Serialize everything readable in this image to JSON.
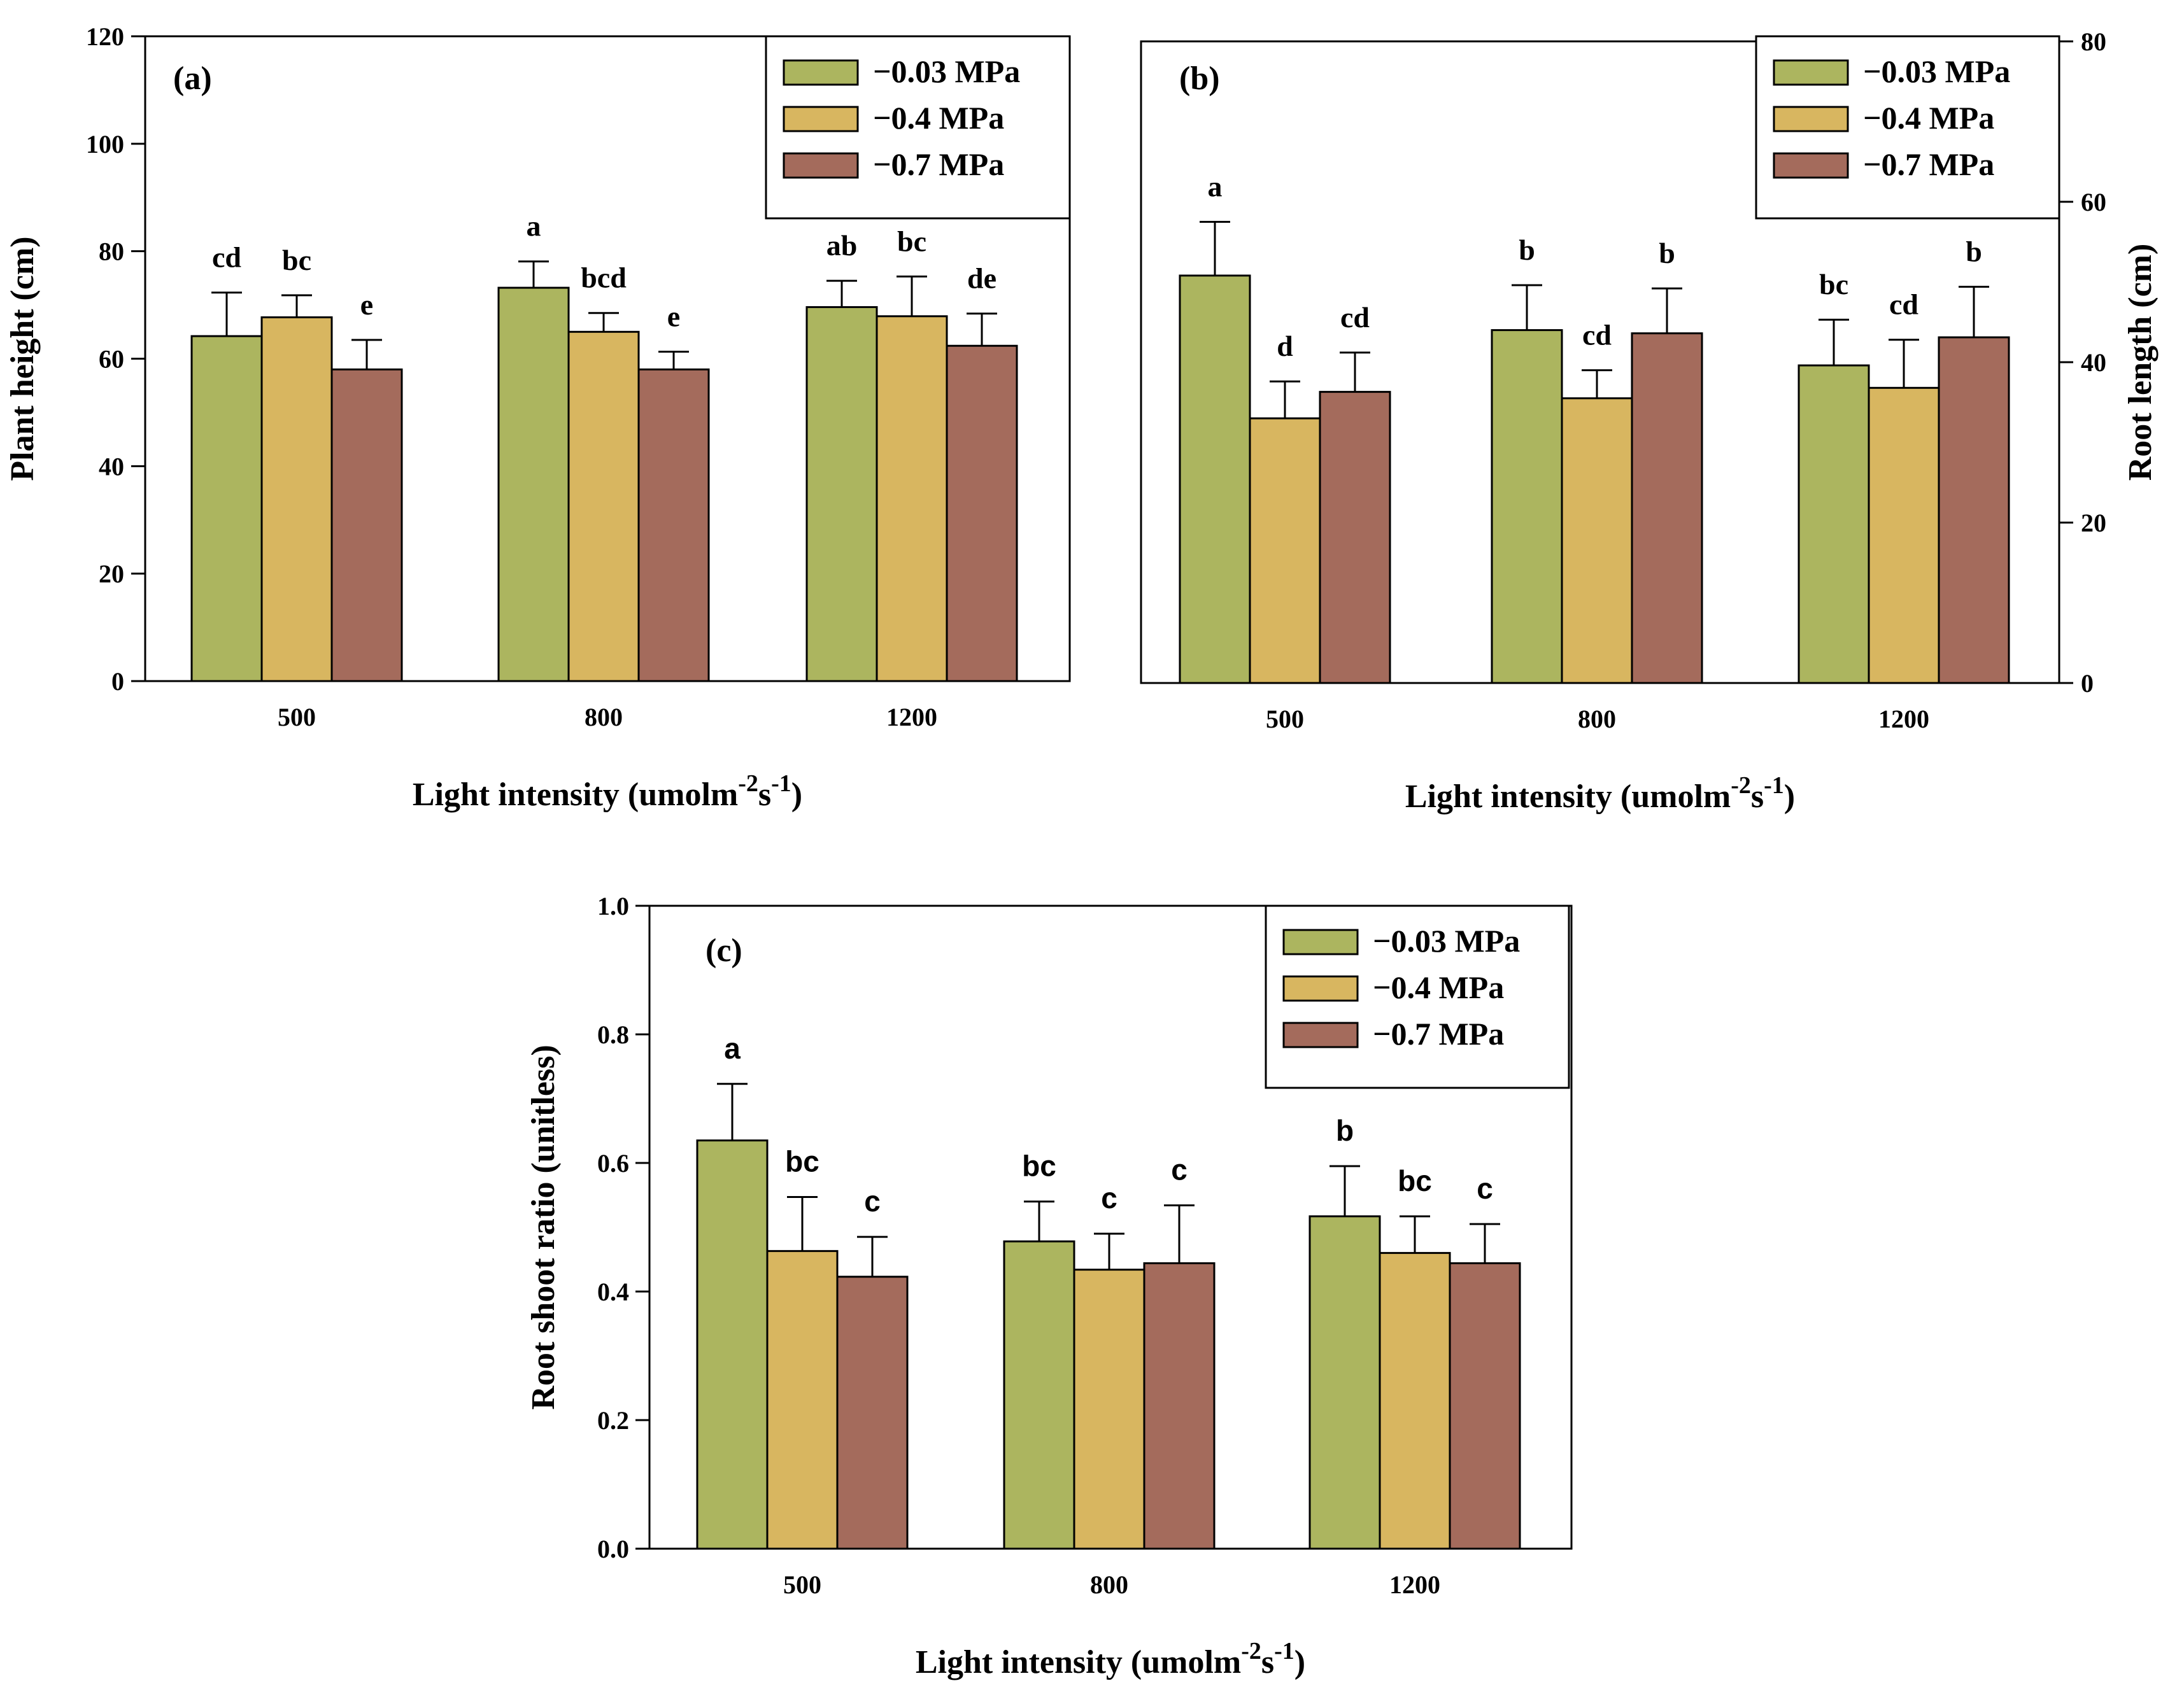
{
  "colors": {
    "series1": "#acb55f",
    "series2": "#d8b660",
    "series3": "#a46b5c"
  },
  "legend": [
    "−0.03 MPa",
    "−0.4 MPa",
    "−0.7 MPa"
  ],
  "chart_data": [
    {
      "type": "bar",
      "panel": "(a)",
      "categories": [
        "500",
        "800",
        "1200"
      ],
      "xlabel": "Light intensity (umolm",
      "xlabel_sup1": "-2",
      "xlabel_mid": "s",
      "xlabel_sup2": "-1",
      "xlabel_end": ")",
      "ylabel": "Plant height (cm)",
      "yaxis_side": "left",
      "ylim": [
        0,
        120
      ],
      "yticks": [
        "0",
        "20",
        "40",
        "60",
        "80",
        "100",
        "120"
      ],
      "ytick_values": [
        0,
        20,
        40,
        60,
        80,
        100,
        120
      ],
      "legend_position": "top-right",
      "series": [
        {
          "name": "−0.03 MPa",
          "values": [
            64.2,
            73.2,
            69.6
          ],
          "errors": [
            8.1,
            4.9,
            4.9
          ],
          "labels": [
            "cd",
            "a",
            "ab"
          ]
        },
        {
          "name": "−0.4 MPa",
          "values": [
            67.7,
            65.0,
            67.9
          ],
          "errors": [
            4.1,
            3.5,
            7.4
          ],
          "labels": [
            "bc",
            "bcd",
            "bc"
          ]
        },
        {
          "name": "−0.7 MPa",
          "values": [
            58.0,
            58.0,
            62.4
          ],
          "errors": [
            5.5,
            3.3,
            6.0
          ],
          "labels": [
            "e",
            "e",
            "de"
          ]
        }
      ]
    },
    {
      "type": "bar",
      "panel": "(b)",
      "categories": [
        "500",
        "800",
        "1200"
      ],
      "xlabel": "Light intensity (umolm",
      "xlabel_sup1": "-2",
      "xlabel_mid": "s",
      "xlabel_sup2": "-1",
      "xlabel_end": ")",
      "ylabel": "Root length (cm)",
      "yaxis_side": "right",
      "ylim": [
        0,
        80
      ],
      "yticks": [
        "0",
        "20",
        "40",
        "60",
        "80"
      ],
      "ytick_values": [
        0,
        20,
        40,
        60,
        80
      ],
      "legend_position": "top-right",
      "series": [
        {
          "name": "−0.03 MPa",
          "values": [
            50.8,
            44.0,
            39.6
          ],
          "errors": [
            6.7,
            5.6,
            5.7
          ],
          "labels": [
            "a",
            "b",
            "bc"
          ]
        },
        {
          "name": "−0.4 MPa",
          "values": [
            33.0,
            35.5,
            36.8
          ],
          "errors": [
            4.6,
            3.5,
            6.0
          ],
          "labels": [
            "d",
            "cd",
            "cd"
          ]
        },
        {
          "name": "−0.7 MPa",
          "values": [
            36.3,
            43.6,
            43.1
          ],
          "errors": [
            4.9,
            5.6,
            6.3
          ],
          "labels": [
            "cd",
            "b",
            "b"
          ]
        }
      ]
    },
    {
      "type": "bar",
      "panel": "(c)",
      "categories": [
        "500",
        "800",
        "1200"
      ],
      "xlabel": "Light intensity (umolm",
      "xlabel_sup1": "-2",
      "xlabel_mid": "s",
      "xlabel_sup2": "-1",
      "xlabel_end": ")",
      "ylabel": "Root shoot ratio (unitless)",
      "yaxis_side": "left",
      "ylim": [
        0,
        1
      ],
      "yticks": [
        "0.0",
        "0.2",
        "0.4",
        "0.6",
        "0.8",
        "1.0"
      ],
      "ytick_values": [
        0,
        0.2,
        0.4,
        0.6,
        0.8,
        1.0
      ],
      "legend_position": "top-right",
      "series": [
        {
          "name": "−0.03 MPa",
          "values": [
            0.635,
            0.478,
            0.517
          ],
          "errors": [
            0.088,
            0.062,
            0.078
          ],
          "labels": [
            "a",
            "bc",
            "b"
          ]
        },
        {
          "name": "−0.4 MPa",
          "values": [
            0.463,
            0.434,
            0.46
          ],
          "errors": [
            0.084,
            0.056,
            0.057
          ],
          "labels": [
            "bc",
            "c",
            "bc"
          ]
        },
        {
          "name": "−0.7 MPa",
          "values": [
            0.423,
            0.444,
            0.444
          ],
          "errors": [
            0.062,
            0.09,
            0.061
          ],
          "labels": [
            "c",
            "c",
            "c"
          ]
        }
      ]
    }
  ]
}
